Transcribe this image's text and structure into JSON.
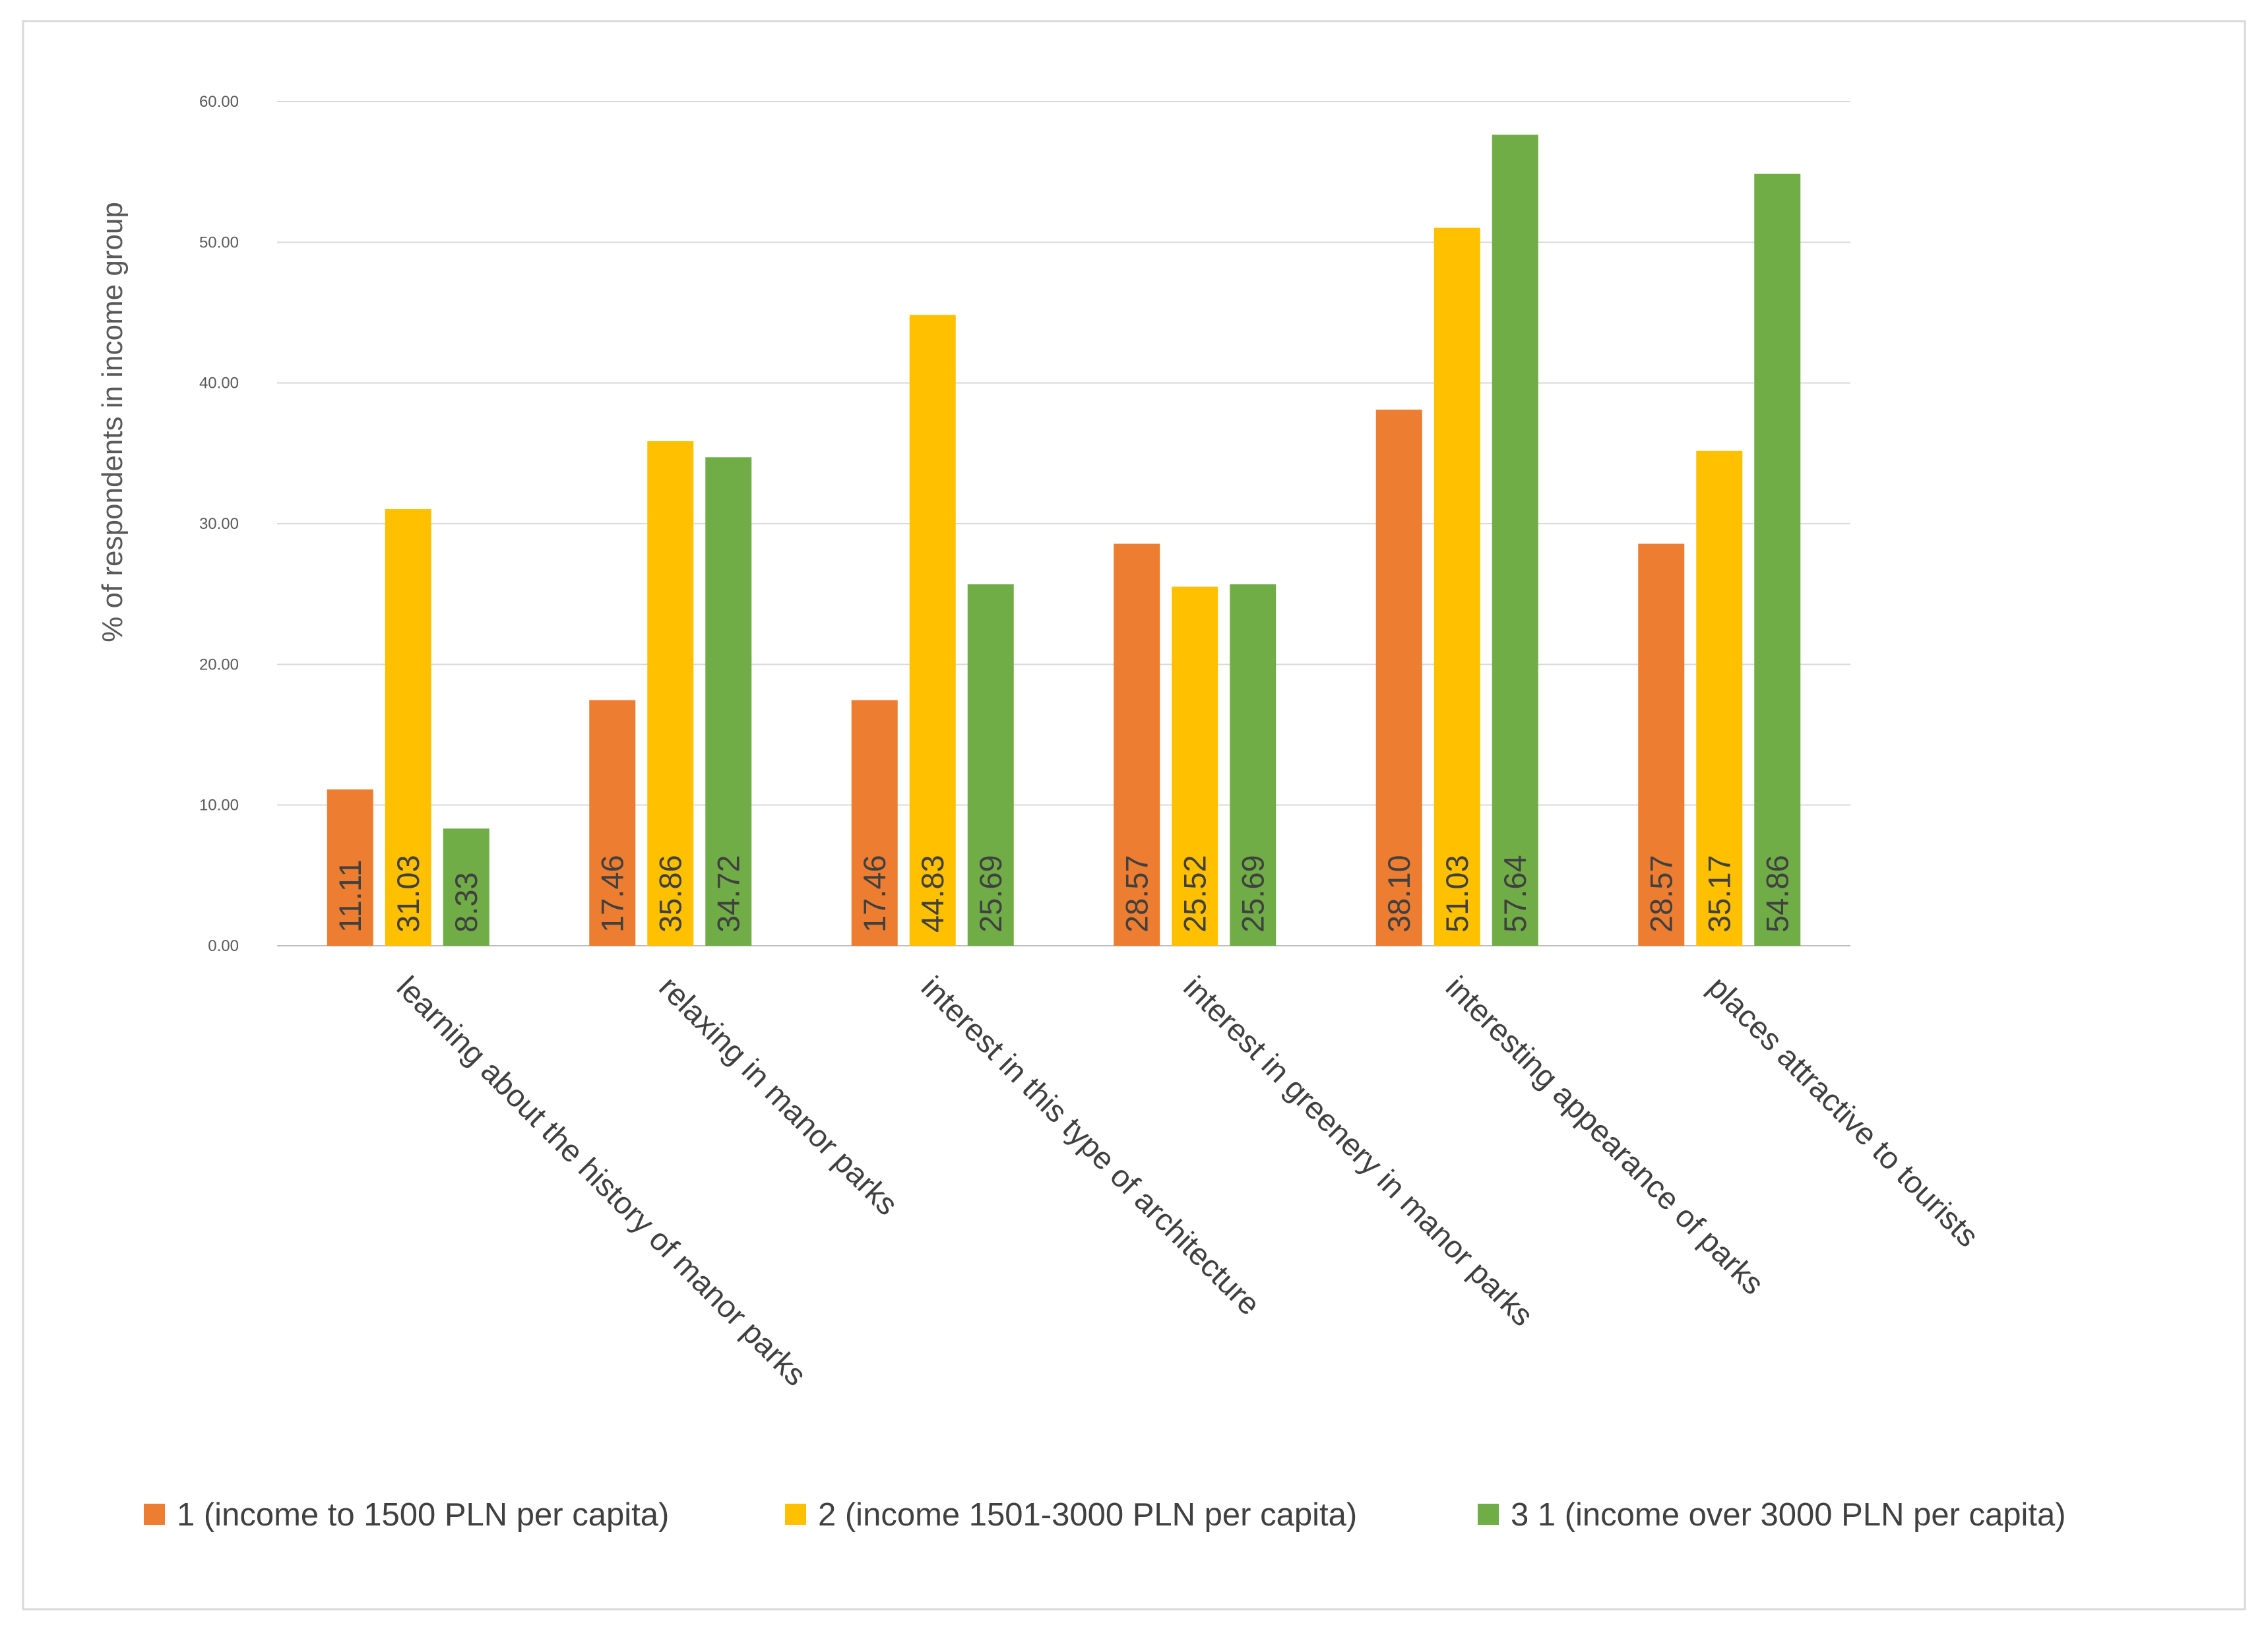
{
  "chart_data": {
    "type": "bar",
    "title": "",
    "xlabel": "",
    "ylabel": "% of respondents in income group",
    "ylim": [
      0,
      60
    ],
    "ytick_step": 10,
    "ytick_labels": [
      "0.00",
      "10.00",
      "20.00",
      "30.00",
      "40.00",
      "50.00",
      "60.00"
    ],
    "grid": true,
    "legend_position": "bottom",
    "categories": [
      "learning about the history of manor parks",
      "relaxing in manor parks",
      "interest in this type of architecture",
      "interest in greenery in manor parks",
      "interesting appearance of parks",
      "places attractive to tourists"
    ],
    "series": [
      {
        "name": "1 (income to 1500 PLN per capita)",
        "color": "#ed7d31",
        "values": [
          11.11,
          17.46,
          17.46,
          28.57,
          38.1,
          28.57
        ],
        "labels": [
          "11.11",
          "17.46",
          "17.46",
          "28.57",
          "38.10",
          "28.57"
        ]
      },
      {
        "name": "2 (income 1501-3000 PLN per capita)",
        "color": "#ffc000",
        "values": [
          31.03,
          35.86,
          44.83,
          25.52,
          51.03,
          35.17
        ],
        "labels": [
          "31.03",
          "35.86",
          "44.83",
          "25.52",
          "51.03",
          "35.17"
        ]
      },
      {
        "name": "3 1 (income over 3000 PLN per capita)",
        "color": "#70ad47",
        "values": [
          8.33,
          34.72,
          25.69,
          25.69,
          57.64,
          54.86
        ],
        "labels": [
          "8.33",
          "34.72",
          "25.69",
          "25.69",
          "57.64",
          "54.86"
        ]
      }
    ]
  }
}
